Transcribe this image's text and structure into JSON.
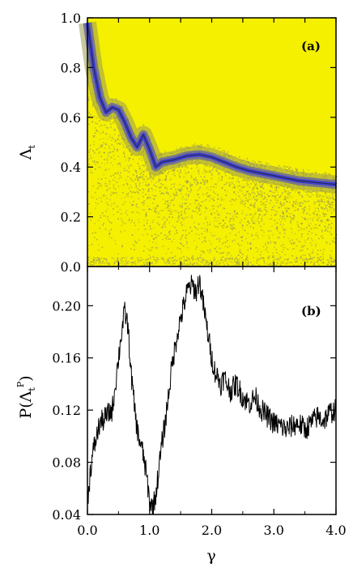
{
  "chart_data": [
    {
      "panel": "(a)",
      "type": "heatmap",
      "title": "",
      "xlabel": "",
      "ylabel": "Λ",
      "ylabel_subscript": "t",
      "xlim": [
        0.0,
        4.0
      ],
      "ylim": [
        0.0,
        1.0
      ],
      "yticks": [
        0.0,
        0.2,
        0.4,
        0.6,
        0.8,
        1.0
      ],
      "ytick_labels": [
        "0.0",
        "0.2",
        "0.4",
        "0.6",
        "0.8",
        "1.0"
      ],
      "background_color": "#f5f000",
      "density_colors": [
        "#f5f000",
        "#9a9a50",
        "#6a6a9a",
        "#3f3fd0"
      ],
      "ridge": {
        "gamma": [
          0.0,
          0.1,
          0.2,
          0.3,
          0.4,
          0.5,
          0.6,
          0.7,
          0.8,
          0.9,
          1.0,
          1.1,
          1.2,
          1.4,
          1.6,
          1.8,
          2.0,
          2.2,
          2.4,
          2.6,
          2.8,
          3.0,
          3.2,
          3.4,
          3.6,
          3.8,
          4.0
        ],
        "lambda_t": [
          0.98,
          0.8,
          0.68,
          0.62,
          0.64,
          0.63,
          0.58,
          0.52,
          0.48,
          0.53,
          0.47,
          0.4,
          0.42,
          0.43,
          0.445,
          0.45,
          0.44,
          0.42,
          0.4,
          0.385,
          0.375,
          0.365,
          0.355,
          0.345,
          0.34,
          0.335,
          0.33
        ]
      }
    },
    {
      "panel": "(b)",
      "type": "line",
      "title": "",
      "xlabel": "γ",
      "ylabel": "P(Λ",
      "ylabel_subscript": "t",
      "ylabel_superscript": "P",
      "ylabel_close": ")",
      "xlim": [
        0.0,
        4.0
      ],
      "ylim": [
        0.04,
        0.23
      ],
      "xticks": [
        0.0,
        1.0,
        2.0,
        3.0,
        4.0
      ],
      "xtick_labels": [
        "0.0",
        "1.0",
        "2.0",
        "3.0",
        "4.0"
      ],
      "yticks": [
        0.04,
        0.08,
        0.12,
        0.16,
        0.2
      ],
      "ytick_labels": [
        "0.04",
        "0.08",
        "0.12",
        "0.16",
        "0.20"
      ],
      "series": [
        {
          "color": "#000000",
          "x": [
            0.0,
            0.05,
            0.1,
            0.15,
            0.2,
            0.25,
            0.3,
            0.35,
            0.4,
            0.45,
            0.5,
            0.55,
            0.6,
            0.65,
            0.7,
            0.75,
            0.8,
            0.85,
            0.9,
            0.95,
            1.0,
            1.05,
            1.1,
            1.15,
            1.2,
            1.25,
            1.3,
            1.35,
            1.4,
            1.45,
            1.5,
            1.55,
            1.6,
            1.65,
            1.7,
            1.75,
            1.8,
            1.85,
            1.9,
            1.95,
            2.0,
            2.05,
            2.1,
            2.15,
            2.2,
            2.3,
            2.4,
            2.5,
            2.6,
            2.7,
            2.8,
            2.9,
            3.0,
            3.1,
            3.2,
            3.3,
            3.4,
            3.5,
            3.6,
            3.7,
            3.8,
            3.9,
            4.0
          ],
          "y": [
            0.05,
            0.075,
            0.09,
            0.1,
            0.11,
            0.112,
            0.115,
            0.118,
            0.12,
            0.14,
            0.16,
            0.18,
            0.195,
            0.185,
            0.15,
            0.125,
            0.105,
            0.095,
            0.085,
            0.07,
            0.05,
            0.045,
            0.055,
            0.075,
            0.095,
            0.11,
            0.13,
            0.15,
            0.165,
            0.18,
            0.19,
            0.2,
            0.21,
            0.215,
            0.215,
            0.21,
            0.22,
            0.205,
            0.19,
            0.175,
            0.16,
            0.15,
            0.145,
            0.14,
            0.145,
            0.135,
            0.14,
            0.13,
            0.125,
            0.13,
            0.12,
            0.115,
            0.11,
            0.108,
            0.105,
            0.108,
            0.11,
            0.105,
            0.11,
            0.115,
            0.112,
            0.118,
            0.12
          ]
        }
      ]
    }
  ]
}
